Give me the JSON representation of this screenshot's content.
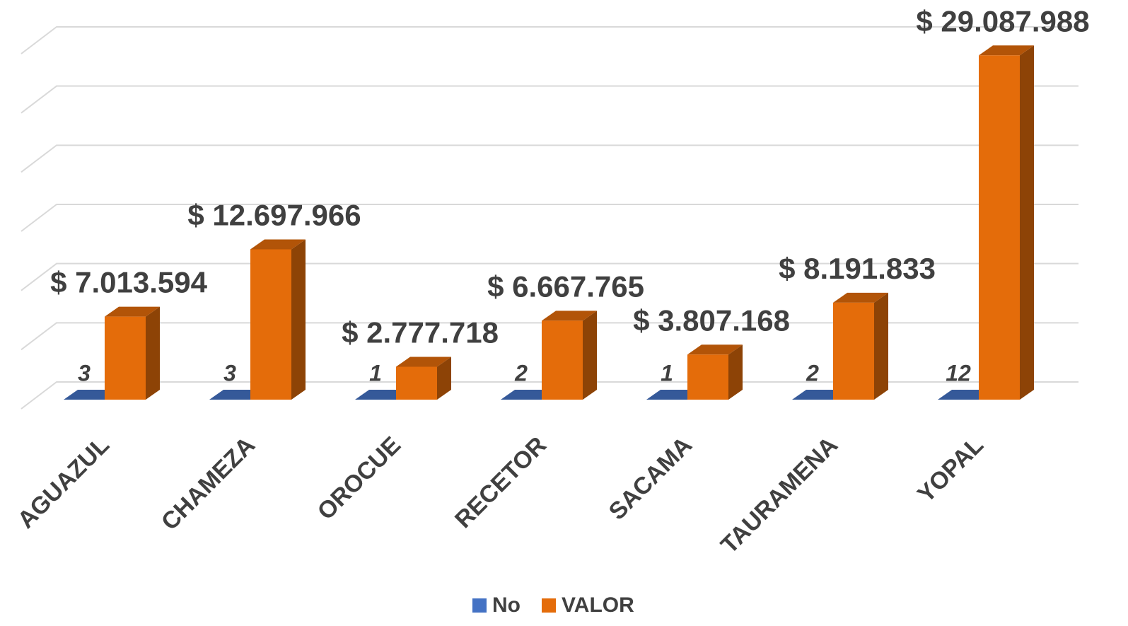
{
  "chart_data": {
    "type": "bar3d",
    "categories": [
      "AGUAZUL",
      "CHAMEZA",
      "OROCUE",
      "RECETOR",
      "SACAMA",
      "TAURAMENA",
      "YOPAL"
    ],
    "series": [
      {
        "name": "No",
        "color": "#4472c4",
        "values": [
          3,
          3,
          1,
          2,
          1,
          2,
          12
        ]
      },
      {
        "name": "VALOR",
        "color": "#e46c0a",
        "values": [
          7013594,
          12697966,
          2777718,
          6667765,
          3807168,
          8191833,
          29087988
        ],
        "value_labels": [
          "$ 7.013.594",
          "$ 12.697.966",
          "$ 2.777.718",
          "$ 6.667.765",
          "$ 3.807.168",
          "$ 8.191.833",
          "$ 29.087.988"
        ]
      }
    ],
    "ylim": [
      0,
      30000000
    ],
    "yticks": [
      0,
      5000000,
      10000000,
      15000000,
      20000000,
      25000000,
      30000000
    ],
    "grid": true,
    "legend": "bottom"
  }
}
